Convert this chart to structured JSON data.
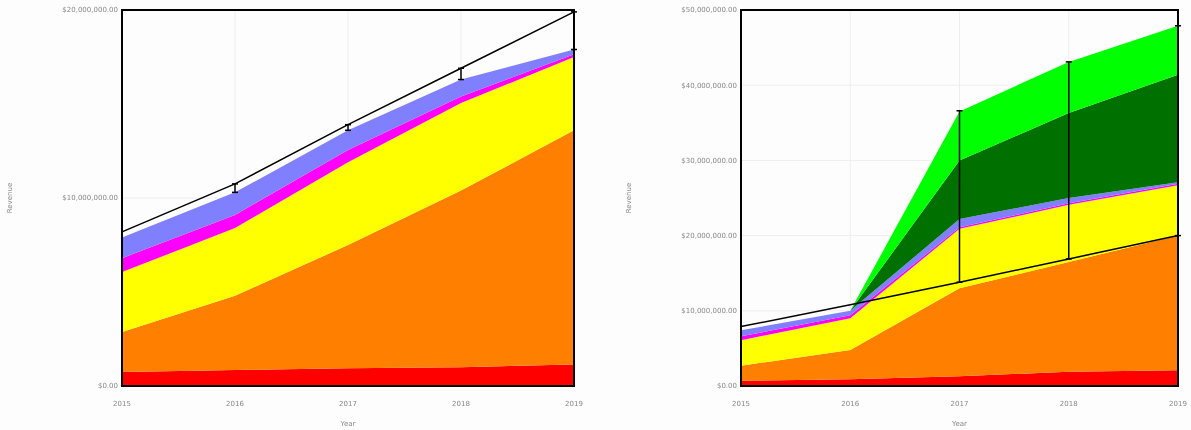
{
  "chart_data": [
    {
      "type": "area",
      "stacked": true,
      "xlabel": "Year",
      "ylabel": "Revenue",
      "categories": [
        "2015",
        "2016",
        "2017",
        "2018",
        "2019"
      ],
      "ylim": [
        0,
        20000000
      ],
      "yticks": [
        {
          "value": 0,
          "label": "$0.00"
        },
        {
          "value": 10000000,
          "label": "$10,000,000.00"
        },
        {
          "value": 20000000,
          "label": "$20,000,000.00"
        }
      ],
      "grid": true,
      "series": [
        {
          "color": "#ff0000",
          "values": [
            750000,
            850000,
            950000,
            1000000,
            1150000
          ]
        },
        {
          "color": "#ff8000",
          "values": [
            2120000,
            3950000,
            6550000,
            9400000,
            12450000
          ]
        },
        {
          "color": "#ffff00",
          "values": [
            3190000,
            3600000,
            4400000,
            4650000,
            3900000
          ]
        },
        {
          "color": "#ff00ff",
          "values": [
            740000,
            700000,
            650000,
            350000,
            150000
          ]
        },
        {
          "color": "#8080ff",
          "values": [
            1100000,
            1200000,
            1050000,
            900000,
            250000
          ]
        },
        {
          "type": "line",
          "color": "#000000",
          "values": [
            8200000,
            10750000,
            13900000,
            16900000,
            19900000
          ],
          "errors": [
            null,
            [
              10300000,
              10750000
            ],
            [
              13600000,
              13900000
            ],
            [
              16300000,
              16900000
            ],
            [
              17900000,
              19900000
            ]
          ]
        }
      ]
    },
    {
      "type": "area",
      "stacked": true,
      "xlabel": "Year",
      "ylabel": "Revenue",
      "categories": [
        "2015",
        "2016",
        "2017",
        "2018",
        "2019"
      ],
      "ylim": [
        0,
        50000000
      ],
      "yticks": [
        {
          "value": 0,
          "label": "$0.00"
        },
        {
          "value": 10000000,
          "label": "$10,000,000.00"
        },
        {
          "value": 20000000,
          "label": "$20,000,000.00"
        },
        {
          "value": 30000000,
          "label": "$30,000,000.00"
        },
        {
          "value": 40000000,
          "label": "$40,000,000.00"
        },
        {
          "value": 50000000,
          "label": "$50,000,000.00"
        }
      ],
      "grid": true,
      "series": [
        {
          "color": "#ff0000",
          "values": [
            700000,
            900000,
            1300000,
            1900000,
            2100000
          ]
        },
        {
          "color": "#ff8000",
          "values": [
            2000000,
            3900000,
            11700000,
            14600000,
            17900000
          ]
        },
        {
          "color": "#ffff00",
          "values": [
            3400000,
            4200000,
            7900000,
            7600000,
            6700000
          ]
        },
        {
          "color": "#ff00ff",
          "values": [
            500000,
            400000,
            200000,
            200000,
            200000
          ]
        },
        {
          "color": "#8080ff",
          "values": [
            800000,
            600000,
            1100000,
            700000,
            200000
          ]
        },
        {
          "color": "#007000",
          "values": [
            0,
            0,
            7800000,
            11300000,
            14300000
          ]
        },
        {
          "color": "#00ff00",
          "values": [
            0,
            0,
            6500000,
            6800000,
            6500000
          ]
        },
        {
          "type": "line",
          "color": "#000000",
          "values": [
            7900000,
            10800000,
            13800000,
            16900000,
            20000000
          ],
          "errors": [
            null,
            null,
            [
              13800000,
              36600000
            ],
            [
              16900000,
              43100000
            ],
            [
              20000000,
              47900000
            ]
          ]
        }
      ]
    }
  ]
}
